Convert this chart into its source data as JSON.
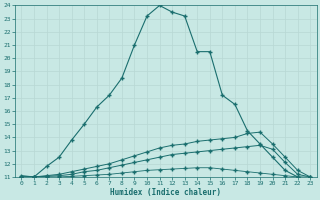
{
  "xlabel": "Humidex (Indice chaleur)",
  "bg_color": "#c8e8e4",
  "grid_color": "#b8d8d4",
  "line_color": "#1a6e6e",
  "xlim": [
    -0.5,
    23.5
  ],
  "ylim": [
    11,
    24
  ],
  "xticks": [
    0,
    1,
    2,
    3,
    4,
    5,
    6,
    7,
    8,
    9,
    10,
    11,
    12,
    13,
    14,
    15,
    16,
    17,
    18,
    19,
    20,
    21,
    22,
    23
  ],
  "yticks": [
    11,
    12,
    13,
    14,
    15,
    16,
    17,
    18,
    19,
    20,
    21,
    22,
    23,
    24
  ],
  "curve1_x": [
    0,
    1,
    2,
    3,
    4,
    5,
    6,
    7,
    8,
    9,
    10,
    11,
    12,
    13,
    14,
    15,
    16,
    17,
    18,
    19,
    20,
    21,
    22,
    23
  ],
  "curve1_y": [
    11.1,
    11.0,
    11.8,
    12.5,
    13.8,
    15.0,
    16.3,
    17.2,
    18.5,
    21.0,
    23.2,
    24.0,
    23.5,
    23.2,
    20.5,
    20.5,
    17.2,
    16.5,
    14.5,
    13.5,
    12.5,
    11.5,
    11.0,
    10.9
  ],
  "curve2_x": [
    0,
    1,
    2,
    3,
    4,
    5,
    6,
    7,
    8,
    9,
    10,
    11,
    12,
    13,
    14,
    15,
    16,
    17,
    18,
    19,
    20,
    21,
    22,
    23
  ],
  "curve2_y": [
    11.0,
    11.0,
    11.1,
    11.2,
    11.4,
    11.6,
    11.8,
    12.0,
    12.3,
    12.6,
    12.9,
    13.2,
    13.4,
    13.5,
    13.7,
    13.8,
    13.9,
    14.0,
    14.3,
    14.4,
    13.5,
    12.5,
    11.5,
    11.0
  ],
  "curve3_x": [
    0,
    1,
    2,
    3,
    4,
    5,
    6,
    7,
    8,
    9,
    10,
    11,
    12,
    13,
    14,
    15,
    16,
    17,
    18,
    19,
    20,
    21,
    22,
    23
  ],
  "curve3_y": [
    11.0,
    11.0,
    11.05,
    11.1,
    11.2,
    11.4,
    11.5,
    11.7,
    11.9,
    12.1,
    12.3,
    12.5,
    12.7,
    12.8,
    12.9,
    13.0,
    13.1,
    13.2,
    13.3,
    13.4,
    13.1,
    12.1,
    11.2,
    11.0
  ],
  "curve4_x": [
    0,
    1,
    2,
    3,
    4,
    5,
    6,
    7,
    8,
    9,
    10,
    11,
    12,
    13,
    14,
    15,
    16,
    17,
    18,
    19,
    20,
    21,
    22,
    23
  ],
  "curve4_y": [
    11.0,
    11.0,
    11.0,
    11.0,
    11.05,
    11.1,
    11.15,
    11.2,
    11.3,
    11.4,
    11.5,
    11.55,
    11.6,
    11.65,
    11.7,
    11.7,
    11.6,
    11.5,
    11.4,
    11.3,
    11.2,
    11.1,
    11.0,
    11.0
  ]
}
